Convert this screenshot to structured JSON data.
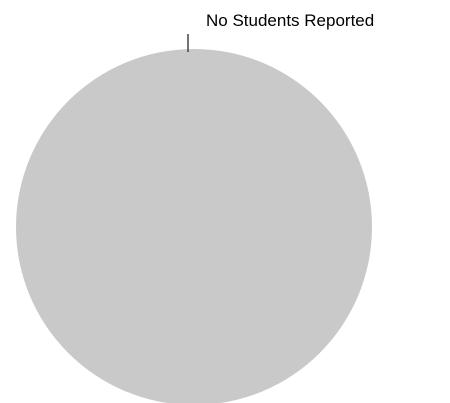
{
  "chart_data": {
    "type": "pie",
    "slices": [
      {
        "label": "No Students Reported",
        "value": 100,
        "color": "#c9c9c9"
      }
    ],
    "legend": "none"
  },
  "colors": {
    "background": "#ffffff",
    "leader_line": "#444444"
  }
}
